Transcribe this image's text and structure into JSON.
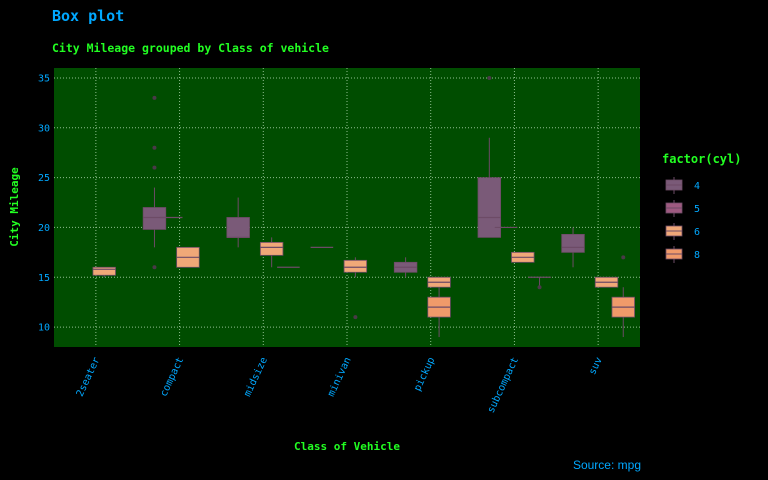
{
  "colors": {
    "background": "#000000",
    "panel": "#004d00",
    "grid": "#8fbf8f",
    "title": "#00a8ff",
    "subtitle": "#22ff22",
    "axis_text": "#22ff22",
    "tick_text": "#00a8ff",
    "caption": "#00a8ff",
    "box4": "#7a5a78",
    "box5": "#9e5a80",
    "box6": "#f0a878",
    "box8": "#f09a6a",
    "whisker": "#6d4b66",
    "outlier": "#4a3a48"
  },
  "chart_data": {
    "type": "box",
    "title": "Box plot",
    "subtitle": "City Mileage grouped by Class of vehicle",
    "xlabel": "Class of Vehicle",
    "ylabel": "City Mileage",
    "caption": "Source: mpg",
    "categories": [
      "2seater",
      "compact",
      "midsize",
      "minivan",
      "pickup",
      "subcompact",
      "suv"
    ],
    "ylim": [
      8,
      36
    ],
    "yticks": [
      10,
      15,
      20,
      25,
      30,
      35
    ],
    "grid": true,
    "legend": {
      "title": "factor(cyl)",
      "position": "right",
      "entries": [
        "4",
        "5",
        "6",
        "8"
      ]
    },
    "series": [
      {
        "name": "4",
        "color_key": "box4",
        "boxes": [
          {
            "category": "compact",
            "slot": 0,
            "min": 18,
            "q1": 19.8,
            "median": 21,
            "q3": 22,
            "max": 24,
            "outliers": [
              16,
              26,
              28,
              33
            ]
          },
          {
            "category": "midsize",
            "slot": 0,
            "min": 18,
            "q1": 19,
            "median": 19,
            "q3": 21,
            "max": 23,
            "outliers": []
          },
          {
            "category": "pickup",
            "slot": 0,
            "min": 15,
            "q1": 15.5,
            "median": 16,
            "q3": 16.5,
            "max": 17,
            "outliers": []
          },
          {
            "category": "subcompact",
            "slot": 0,
            "min": 19,
            "q1": 19,
            "median": 21,
            "q3": 25,
            "max": 29,
            "outliers": [
              35
            ]
          },
          {
            "category": "suv",
            "slot": 0,
            "min": 16,
            "q1": 17.5,
            "median": 18,
            "q3": 19.3,
            "max": 20,
            "outliers": []
          }
        ]
      },
      {
        "name": "5",
        "color_key": "box5",
        "boxes": [
          {
            "category": "compact",
            "slot": 1,
            "min": 21,
            "q1": 21,
            "median": 21,
            "q3": 21,
            "max": 21,
            "outliers": []
          },
          {
            "category": "subcompact",
            "slot": 1,
            "min": 20,
            "q1": 20,
            "median": 20,
            "q3": 20,
            "max": 20,
            "outliers": []
          }
        ]
      },
      {
        "name": "6",
        "color_key": "box6",
        "boxes": [
          {
            "category": "2seater",
            "slot": 2,
            "min": 15,
            "q1": 15.2,
            "median": 15.8,
            "q3": 16,
            "max": 16,
            "outliers": []
          },
          {
            "category": "compact",
            "slot": 2,
            "min": 16,
            "q1": 16,
            "median": 17,
            "q3": 18,
            "max": 18,
            "outliers": []
          },
          {
            "category": "midsize",
            "slot": 2,
            "min": 16,
            "q1": 17.2,
            "median": 18,
            "q3": 18.5,
            "max": 19,
            "outliers": []
          },
          {
            "category": "minivan",
            "slot": 2,
            "min": 15,
            "q1": 15.5,
            "median": 16,
            "q3": 16.7,
            "max": 17,
            "outliers": [
              11
            ]
          },
          {
            "category": "pickup",
            "slot": 2,
            "min": 14,
            "q1": 14,
            "median": 14.5,
            "q3": 15,
            "max": 15,
            "outliers": []
          },
          {
            "category": "subcompact",
            "slot": 2,
            "min": 16.5,
            "q1": 16.5,
            "median": 17,
            "q3": 17.5,
            "max": 17.5,
            "outliers": []
          },
          {
            "category": "suv",
            "slot": 2,
            "min": 14,
            "q1": 14,
            "median": 14.5,
            "q3": 15,
            "max": 15,
            "outliers": []
          }
        ]
      },
      {
        "name": "8",
        "color_key": "box8",
        "boxes": [
          {
            "category": "midsize",
            "slot": 3,
            "min": 16,
            "q1": 16,
            "median": 16,
            "q3": 16,
            "max": 16,
            "outliers": []
          },
          {
            "category": "minivan",
            "slot": 0,
            "min": 18,
            "q1": 18,
            "median": 18,
            "q3": 18,
            "max": 18,
            "outliers": []
          },
          {
            "category": "pickup",
            "slot": 2,
            "min": 9,
            "q1": 11,
            "median": 12,
            "q3": 13,
            "max": 14,
            "outliers": []
          },
          {
            "category": "subcompact",
            "slot": 3,
            "min": 14,
            "q1": 15,
            "median": 15,
            "q3": 15,
            "max": 15,
            "outliers": [
              14
            ]
          },
          {
            "category": "suv",
            "slot": 3,
            "min": 9,
            "q1": 11,
            "median": 12,
            "q3": 13,
            "max": 14,
            "outliers": [
              17
            ]
          }
        ]
      }
    ]
  }
}
